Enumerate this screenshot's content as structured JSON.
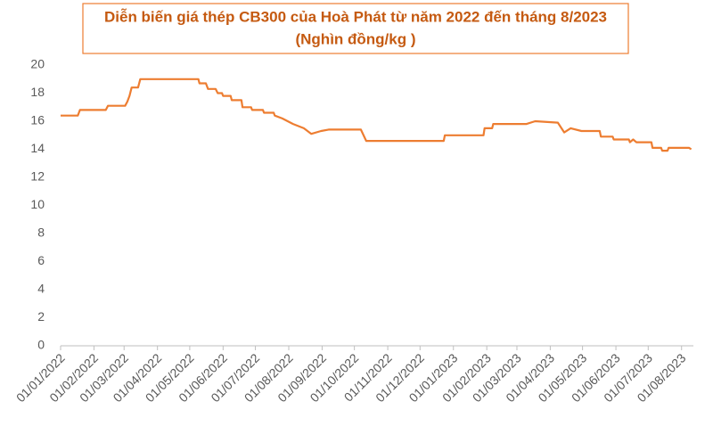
{
  "chart_data": {
    "type": "line",
    "title": "Diễn biến giá thép CB300 của Hoà Phát từ năm 2022 đến tháng 8/2023",
    "subtitle": "(Nghìn đồng/kg )",
    "color": "#ed7d31",
    "x": [
      "01/01/2022",
      "17/01/2022",
      "19/01/2022",
      "12/02/2022",
      "14/02/2022",
      "02/03/2022",
      "04/03/2022",
      "06/03/2022",
      "08/03/2022",
      "14/03/2022",
      "16/03/2022",
      "09/05/2022",
      "10/05/2022",
      "16/05/2022",
      "18/05/2022",
      "25/05/2022",
      "27/05/2022",
      "31/05/2022",
      "01/06/2022",
      "08/06/2022",
      "09/06/2022",
      "18/06/2022",
      "19/06/2022",
      "27/06/2022",
      "28/06/2022",
      "08/07/2022",
      "09/07/2022",
      "18/07/2022",
      "19/07/2022",
      "26/07/2022",
      "05/08/2022",
      "15/08/2022",
      "22/08/2022",
      "31/08/2022",
      "07/09/2022",
      "07/10/2022",
      "12/10/2022",
      "23/12/2022",
      "24/12/2022",
      "29/01/2023",
      "30/01/2023",
      "06/02/2023",
      "07/02/2023",
      "10/03/2023",
      "18/03/2023",
      "08/04/2023",
      "14/04/2023",
      "20/04/2023",
      "30/04/2023",
      "17/05/2023",
      "18/05/2023",
      "29/05/2023",
      "30/05/2023",
      "13/06/2023",
      "14/06/2023",
      "17/06/2023",
      "20/06/2023",
      "04/07/2023",
      "05/07/2023",
      "13/07/2023",
      "14/07/2023",
      "19/07/2023",
      "20/07/2023",
      "08/08/2023",
      "10/08/2023"
    ],
    "values": [
      16.4,
      16.4,
      16.8,
      16.8,
      17.1,
      17.1,
      17.4,
      17.8,
      18.4,
      18.4,
      19.0,
      19.0,
      18.7,
      18.7,
      18.3,
      18.3,
      18.0,
      18.0,
      17.8,
      17.8,
      17.5,
      17.5,
      17.0,
      17.0,
      16.8,
      16.8,
      16.6,
      16.6,
      16.4,
      16.2,
      15.8,
      15.5,
      15.1,
      15.3,
      15.4,
      15.4,
      14.6,
      14.6,
      15.0,
      15.0,
      15.5,
      15.5,
      15.8,
      15.8,
      16.0,
      15.9,
      15.2,
      15.5,
      15.3,
      15.3,
      14.9,
      14.9,
      14.7,
      14.7,
      14.5,
      14.7,
      14.5,
      14.5,
      14.1,
      14.1,
      13.9,
      13.9,
      14.1,
      14.1,
      14.0
    ],
    "xlim": [
      "01/01/2022",
      "12/08/2023"
    ],
    "xticks": [
      "01/01/2022",
      "01/02/2022",
      "01/03/2022",
      "01/04/2022",
      "01/05/2022",
      "01/06/2022",
      "01/07/2022",
      "01/08/2022",
      "01/09/2022",
      "01/10/2022",
      "01/11/2022",
      "01/12/2022",
      "01/01/2023",
      "01/02/2023",
      "01/03/2023",
      "01/04/2023",
      "01/05/2023",
      "01/06/2023",
      "01/07/2023",
      "01/08/2023"
    ],
    "ylim": [
      0,
      20
    ],
    "yticks": [
      0,
      2,
      4,
      6,
      8,
      10,
      12,
      14,
      16,
      18,
      20
    ]
  }
}
